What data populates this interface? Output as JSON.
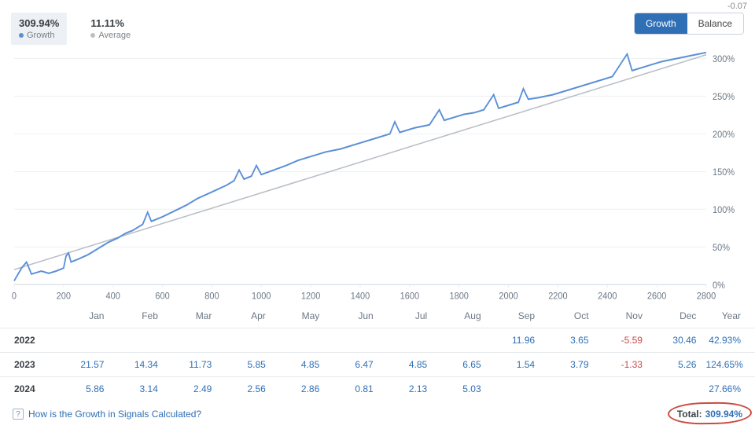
{
  "stray_top_right": "-0.07",
  "legend": {
    "growth": {
      "value": "309.94%",
      "label": "Growth",
      "color": "#5a8fd6"
    },
    "average": {
      "value": "11.11%",
      "label": "Average",
      "color": "#b9bfc6"
    }
  },
  "toggle": {
    "growth": "Growth",
    "balance": "Balance",
    "selected": "growth"
  },
  "chart": {
    "type": "line",
    "background_color": "#ffffff",
    "grid_color": "#eef1f4",
    "axis_color": "#d7dde3",
    "tick_fontsize": 11,
    "xlim": [
      0,
      2800
    ],
    "xtick_step": 200,
    "ylim": [
      0,
      300
    ],
    "ytick_step": 50,
    "ytick_suffix": "%",
    "series": {
      "average": {
        "color": "#b9bfc6",
        "width": 1.4,
        "points": [
          [
            0,
            20
          ],
          [
            2800,
            305
          ]
        ]
      },
      "growth": {
        "color": "#5a8fd6",
        "width": 1.8,
        "points": [
          [
            0,
            5
          ],
          [
            30,
            22
          ],
          [
            50,
            30
          ],
          [
            70,
            14
          ],
          [
            90,
            16
          ],
          [
            110,
            18
          ],
          [
            140,
            15
          ],
          [
            170,
            18
          ],
          [
            200,
            22
          ],
          [
            210,
            38
          ],
          [
            220,
            42
          ],
          [
            230,
            30
          ],
          [
            260,
            34
          ],
          [
            300,
            40
          ],
          [
            340,
            48
          ],
          [
            380,
            56
          ],
          [
            420,
            62
          ],
          [
            450,
            68
          ],
          [
            480,
            72
          ],
          [
            520,
            80
          ],
          [
            540,
            96
          ],
          [
            555,
            84
          ],
          [
            600,
            90
          ],
          [
            650,
            98
          ],
          [
            700,
            106
          ],
          [
            740,
            114
          ],
          [
            780,
            120
          ],
          [
            820,
            126
          ],
          [
            860,
            132
          ],
          [
            890,
            138
          ],
          [
            910,
            152
          ],
          [
            930,
            140
          ],
          [
            960,
            144
          ],
          [
            980,
            158
          ],
          [
            1000,
            146
          ],
          [
            1050,
            152
          ],
          [
            1100,
            158
          ],
          [
            1150,
            165
          ],
          [
            1200,
            170
          ],
          [
            1260,
            176
          ],
          [
            1320,
            180
          ],
          [
            1360,
            184
          ],
          [
            1400,
            188
          ],
          [
            1440,
            192
          ],
          [
            1480,
            196
          ],
          [
            1520,
            200
          ],
          [
            1540,
            216
          ],
          [
            1560,
            202
          ],
          [
            1620,
            208
          ],
          [
            1680,
            212
          ],
          [
            1720,
            232
          ],
          [
            1740,
            218
          ],
          [
            1780,
            222
          ],
          [
            1820,
            226
          ],
          [
            1860,
            228
          ],
          [
            1900,
            232
          ],
          [
            1940,
            252
          ],
          [
            1960,
            234
          ],
          [
            2000,
            238
          ],
          [
            2040,
            242
          ],
          [
            2060,
            260
          ],
          [
            2080,
            246
          ],
          [
            2120,
            248
          ],
          [
            2180,
            252
          ],
          [
            2240,
            258
          ],
          [
            2300,
            264
          ],
          [
            2360,
            270
          ],
          [
            2420,
            276
          ],
          [
            2460,
            296
          ],
          [
            2480,
            306
          ],
          [
            2500,
            284
          ],
          [
            2560,
            290
          ],
          [
            2620,
            296
          ],
          [
            2680,
            300
          ],
          [
            2740,
            304
          ],
          [
            2800,
            308
          ]
        ]
      }
    }
  },
  "table": {
    "columns": [
      "Jan",
      "Feb",
      "Mar",
      "Apr",
      "May",
      "Jun",
      "Jul",
      "Aug",
      "Sep",
      "Oct",
      "Nov",
      "Dec",
      "Year"
    ],
    "rows": [
      {
        "year": "2022",
        "cells": [
          "",
          "",
          "",
          "",
          "",
          "",
          "",
          "",
          "11.96",
          "3.65",
          "-5.59",
          "30.46",
          "42.93%"
        ]
      },
      {
        "year": "2023",
        "cells": [
          "21.57",
          "14.34",
          "11.73",
          "5.85",
          "4.85",
          "6.47",
          "4.85",
          "6.65",
          "1.54",
          "3.79",
          "-1.33",
          "5.26",
          "124.65%"
        ]
      },
      {
        "year": "2024",
        "cells": [
          "5.86",
          "3.14",
          "2.49",
          "2.56",
          "2.86",
          "0.81",
          "2.13",
          "5.03",
          "",
          "",
          "",
          "",
          "27.66%"
        ]
      }
    ]
  },
  "footer": {
    "help_text": "How is the Growth in Signals Calculated?",
    "total_label": "Total:",
    "total_value": "309.94%"
  }
}
